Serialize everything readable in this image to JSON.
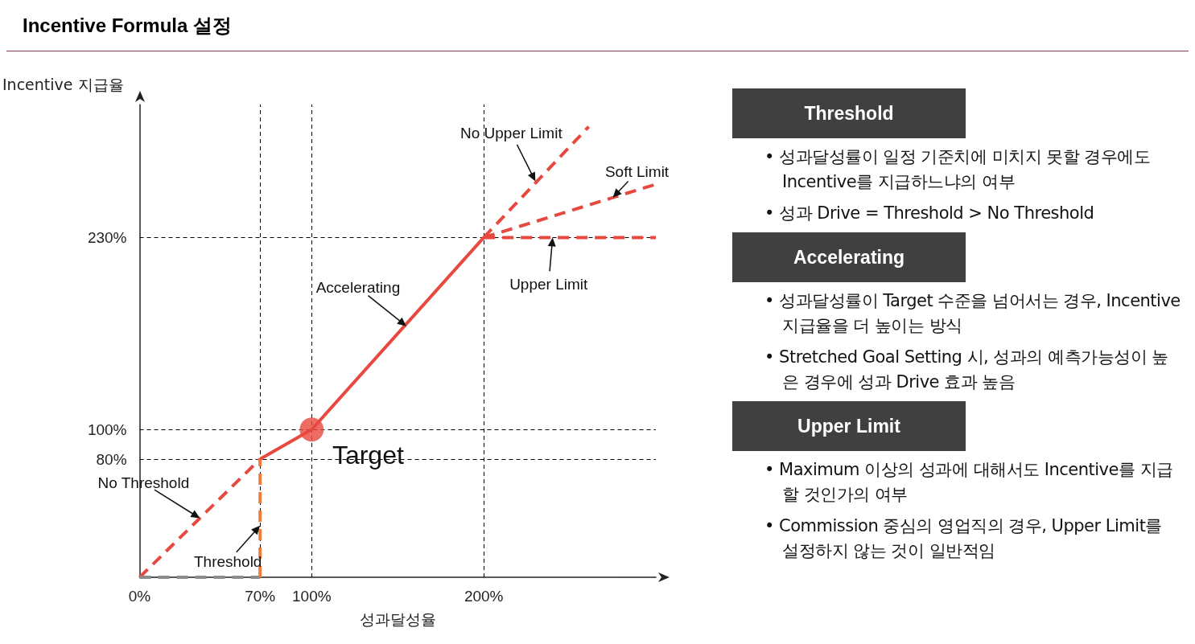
{
  "chart_data": {
    "type": "line",
    "title": "Incentive Formula 설정",
    "xlabel": "성과달성율",
    "ylabel": "Incentive 지급율",
    "xlim": [
      0,
      300
    ],
    "ylim": [
      0,
      320
    ],
    "xticks": [
      {
        "value": 0,
        "label": "0%"
      },
      {
        "value": 70,
        "label": "70%"
      },
      {
        "value": 100,
        "label": "100%"
      },
      {
        "value": 200,
        "label": "200%"
      }
    ],
    "yticks": [
      {
        "value": 80,
        "label": "80%"
      },
      {
        "value": 100,
        "label": "100%"
      },
      {
        "value": 230,
        "label": "230%"
      }
    ],
    "grid": false,
    "series": [
      {
        "color": "#e8493f",
        "line_style": "dashed",
        "x": [
          0,
          70
        ],
        "values": [
          0,
          80
        ]
      },
      {
        "color": "#8c8c8c",
        "line_style": "dashed",
        "x": [
          0,
          70
        ],
        "values": [
          0,
          0
        ]
      },
      {
        "color": "#f07c3c",
        "line_style": "dashed",
        "x": [
          70,
          70
        ],
        "values": [
          0,
          80
        ]
      },
      {
        "color": "#e8493f",
        "line_style": "solid",
        "x": [
          70,
          100,
          200
        ],
        "values": [
          80,
          100,
          230
        ]
      },
      {
        "color": "#e8493f",
        "line_style": "dashed",
        "x": [
          200,
          261
        ],
        "values": [
          230,
          305
        ]
      },
      {
        "color": "#e8493f",
        "line_style": "dashed",
        "x": [
          200,
          300
        ],
        "values": [
          230,
          266
        ]
      },
      {
        "color": "#e8493f",
        "line_style": "dashed",
        "x": [
          200,
          300
        ],
        "values": [
          230,
          230
        ]
      },
      {
        "type": "scatter",
        "color": "#e8493f",
        "marker": "circle",
        "x": [
          100
        ],
        "values": [
          100
        ]
      }
    ],
    "ref_lines": [
      {
        "axis": "x",
        "value": 70
      },
      {
        "axis": "x",
        "value": 100
      },
      {
        "axis": "x",
        "value": 200
      },
      {
        "axis": "y",
        "value": 80
      },
      {
        "axis": "y",
        "value": 100
      },
      {
        "axis": "y",
        "value": 230
      }
    ],
    "annotations": [
      {
        "text": "No Upper Limit",
        "x": 230,
        "y": 268
      },
      {
        "text": "Soft Limit",
        "x": 275,
        "y": 257
      },
      {
        "text": "Upper Limit",
        "x": 240,
        "y": 230
      },
      {
        "text": "Accelerating",
        "x": 155,
        "y": 170
      },
      {
        "text": "Target",
        "x": 100,
        "y": 100
      },
      {
        "text": "No Threshold",
        "x": 35,
        "y": 40
      },
      {
        "text": "Threshold",
        "x": 70,
        "y": 35
      },
      "Threshold",
      "• 성과달성률이 일정 기준치에 미치지 못할 경우에도 Incentive를 지급하느냐의 여부",
      "• 성과 Drive = Threshold > No Threshold",
      "Accelerating",
      "• 성과달성률이 Target 수준을 넘어서는 경우, Incentive 지급율을 더 높이는 방식",
      "• Stretched Goal Setting 시, 성과의 예측가능성이 높은 경우에 성과 Drive 효과 높음",
      "Upper Limit",
      "• Maximum 이상의 성과에 대해서도 Incentive를 지급할 것인가의 여부",
      "• Commission 중심의 영업직의 경우, Upper Limit를 설정하지 않는 것이 일반적임"
    ]
  }
}
